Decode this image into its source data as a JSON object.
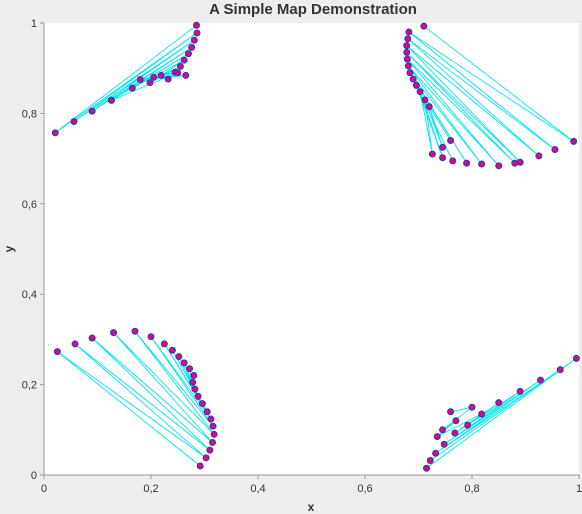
{
  "chart_data": {
    "type": "scatter",
    "title": "A Simple Map Demonstration",
    "xlabel": "x",
    "ylabel": "y",
    "xlim": [
      0,
      1
    ],
    "ylim": [
      0,
      1
    ],
    "x_ticks": [
      "0",
      "0,2",
      "0,4",
      "0,6",
      "0,8",
      "1"
    ],
    "y_ticks": [
      "0",
      "0,2",
      "0,4",
      "0,6",
      "0,8",
      "1"
    ],
    "grid": false,
    "legend": "none",
    "colors": {
      "line": "#00e5ee",
      "marker_fill": "#cc1177",
      "marker_stroke": "#3333cc",
      "plot_bg": "#ffffff",
      "page_bg": "#eeeeee"
    },
    "series": [
      {
        "points": [
          [
            0.285,
            0.995
          ],
          [
            0.021,
            0.757
          ],
          [
            0.286,
            0.978
          ],
          [
            0.056,
            0.782
          ],
          [
            0.281,
            0.962
          ],
          [
            0.09,
            0.805
          ],
          [
            0.276,
            0.946
          ],
          [
            0.126,
            0.829
          ],
          [
            0.27,
            0.932
          ],
          [
            0.165,
            0.856
          ],
          [
            0.262,
            0.918
          ],
          [
            0.198,
            0.868
          ],
          [
            0.255,
            0.904
          ],
          [
            0.219,
            0.884
          ],
          [
            0.245,
            0.891
          ],
          [
            0.232,
            0.876
          ],
          [
            0.205,
            0.88
          ],
          [
            0.265,
            0.884
          ],
          [
            0.18,
            0.875
          ],
          [
            0.25,
            0.89
          ],
          [
            0.126,
            0.829
          ]
        ]
      },
      {
        "points": [
          [
            0.71,
            0.993
          ],
          [
            0.99,
            0.738
          ],
          [
            0.682,
            0.98
          ],
          [
            0.955,
            0.72
          ],
          [
            0.68,
            0.965
          ],
          [
            0.925,
            0.706
          ],
          [
            0.678,
            0.95
          ],
          [
            0.89,
            0.692
          ],
          [
            0.678,
            0.935
          ],
          [
            0.88,
            0.69
          ],
          [
            0.679,
            0.92
          ],
          [
            0.85,
            0.684
          ],
          [
            0.681,
            0.905
          ],
          [
            0.818,
            0.688
          ],
          [
            0.684,
            0.89
          ],
          [
            0.79,
            0.69
          ],
          [
            0.69,
            0.876
          ],
          [
            0.764,
            0.695
          ],
          [
            0.696,
            0.862
          ],
          [
            0.745,
            0.702
          ],
          [
            0.703,
            0.848
          ],
          [
            0.726,
            0.71
          ],
          [
            0.712,
            0.83
          ],
          [
            0.745,
            0.725
          ],
          [
            0.72,
            0.815
          ],
          [
            0.76,
            0.74
          ]
        ]
      },
      {
        "points": [
          [
            0.292,
            0.02
          ],
          [
            0.025,
            0.273
          ],
          [
            0.303,
            0.038
          ],
          [
            0.058,
            0.29
          ],
          [
            0.31,
            0.055
          ],
          [
            0.09,
            0.303
          ],
          [
            0.315,
            0.072
          ],
          [
            0.13,
            0.315
          ],
          [
            0.318,
            0.09
          ],
          [
            0.17,
            0.318
          ],
          [
            0.316,
            0.108
          ],
          [
            0.2,
            0.306
          ],
          [
            0.312,
            0.124
          ],
          [
            0.225,
            0.29
          ],
          [
            0.305,
            0.14
          ],
          [
            0.24,
            0.276
          ],
          [
            0.296,
            0.158
          ],
          [
            0.252,
            0.262
          ],
          [
            0.288,
            0.174
          ],
          [
            0.262,
            0.248
          ],
          [
            0.282,
            0.19
          ],
          [
            0.272,
            0.235
          ],
          [
            0.278,
            0.205
          ],
          [
            0.28,
            0.22
          ]
        ]
      },
      {
        "points": [
          [
            0.715,
            0.015
          ],
          [
            0.995,
            0.258
          ],
          [
            0.722,
            0.032
          ],
          [
            0.965,
            0.233
          ],
          [
            0.732,
            0.048
          ],
          [
            0.928,
            0.21
          ],
          [
            0.748,
            0.068
          ],
          [
            0.89,
            0.185
          ],
          [
            0.768,
            0.093
          ],
          [
            0.85,
            0.16
          ],
          [
            0.792,
            0.11
          ],
          [
            0.818,
            0.135
          ],
          [
            0.735,
            0.085
          ],
          [
            0.77,
            0.12
          ],
          [
            0.745,
            0.1
          ],
          [
            0.8,
            0.15
          ],
          [
            0.76,
            0.14
          ]
        ]
      }
    ]
  }
}
